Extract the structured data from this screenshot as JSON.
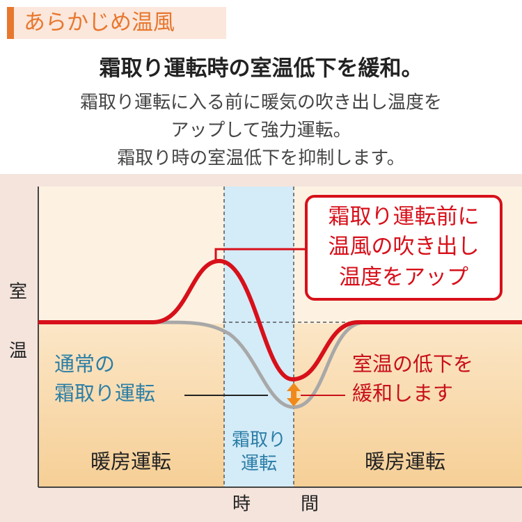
{
  "header": {
    "tag": "あらかじめ温風",
    "title": "霜取り運転時の室温低下を緩和。",
    "description": [
      "霜取り運転に入る前に暖気の吹き出し温度を",
      "アップして強力運転。",
      "霜取り時の室温低下を抑制します。"
    ]
  },
  "diagram": {
    "y_axis_label": [
      "室",
      "温"
    ],
    "x_axis_label": [
      "時",
      "間"
    ],
    "callout": [
      "霜取り運転前に",
      "温風の吹き出し",
      "温度をアップ"
    ],
    "normal_label": [
      "通常の",
      "霜取り運転"
    ],
    "improved_label": [
      "室温の低下を",
      "緩和します"
    ],
    "phases": {
      "left": "暖房運転",
      "center": [
        "霜取り",
        "運転"
      ],
      "right": "暖房運転"
    }
  }
}
